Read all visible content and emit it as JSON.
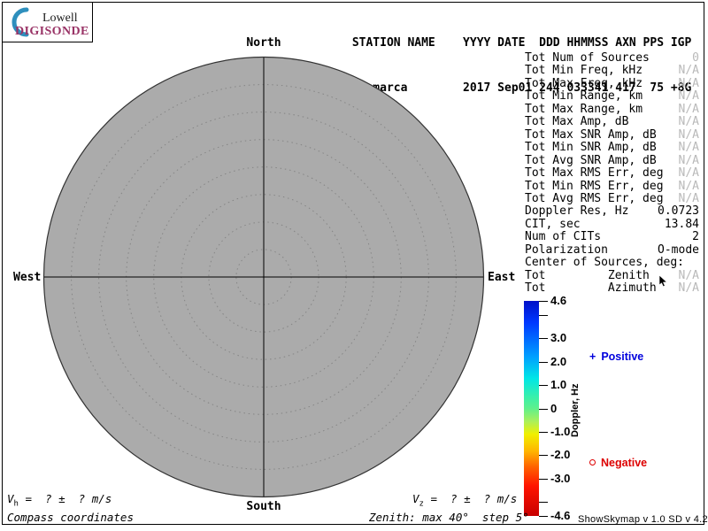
{
  "logo": {
    "top": "Lowell",
    "bottom": "DIGISONDE"
  },
  "header": {
    "line1": " STATION NAME    YYYY DATE  DDD HHMMSS AXN PPS IGP",
    "line2": "Jicamarca        2017 Sep01 244 033341 417  75 +8G",
    "fields": {
      "station_name": "Jicamarca",
      "yyyy": "2017",
      "date": "Sep01",
      "ddd": "244",
      "hhmmss": "033341",
      "axn": "417",
      "pps": "75",
      "igp": "+8G"
    }
  },
  "compass": {
    "north": "North",
    "south": "South",
    "west": "West",
    "east": "East"
  },
  "stats": {
    "rows": [
      {
        "label": "Tot Num of Sources",
        "value": "0",
        "dim": true
      },
      {
        "label": "Tot Min Freq, kHz",
        "value": "N/A",
        "dim": true
      },
      {
        "label": "Tot Max Freq, kHz",
        "value": "N/A",
        "dim": true
      },
      {
        "label": "Tot Min Range, km",
        "value": "N/A",
        "dim": true
      },
      {
        "label": "Tot Max Range, km",
        "value": "N/A",
        "dim": true
      },
      {
        "label": "Tot Max Amp, dB",
        "value": "N/A",
        "dim": true
      },
      {
        "label": "Tot Max SNR Amp, dB",
        "value": "N/A",
        "dim": true
      },
      {
        "label": "Tot Min SNR Amp, dB",
        "value": "N/A",
        "dim": true
      },
      {
        "label": "Tot Avg SNR Amp, dB",
        "value": "N/A",
        "dim": true
      },
      {
        "label": "Tot Max RMS Err, deg",
        "value": "N/A",
        "dim": true
      },
      {
        "label": "Tot Min RMS Err, deg",
        "value": "N/A",
        "dim": true
      },
      {
        "label": "Tot Avg RMS Err, deg",
        "value": "N/A",
        "dim": true
      },
      {
        "label": "Doppler Res, Hz",
        "value": "0.0723",
        "dim": false
      },
      {
        "label": "CIT, sec",
        "value": "13.84",
        "dim": false
      },
      {
        "label": "Num of CITs",
        "value": "2",
        "dim": false
      },
      {
        "label": "Polarization",
        "value": "O-mode",
        "dim": false
      },
      {
        "label": "Center of Sources, deg:",
        "value": "",
        "dim": false
      },
      {
        "label": "Tot         Zenith",
        "value": "N/A",
        "dim": true
      },
      {
        "label": "Tot         Azimuth",
        "value": "N/A",
        "dim": true
      }
    ]
  },
  "colorbar": {
    "title": "Doppler, Hz",
    "max": 4.6,
    "min": -4.6,
    "ticks": [
      {
        "v": 4.6,
        "label": "4.6"
      },
      {
        "v": 4.0,
        "label": ""
      },
      {
        "v": 3.0,
        "label": "3.0"
      },
      {
        "v": 2.0,
        "label": "2.0"
      },
      {
        "v": 1.0,
        "label": "1.0"
      },
      {
        "v": 0,
        "label": "0"
      },
      {
        "v": -1.0,
        "label": "-1.0"
      },
      {
        "v": -2.0,
        "label": "-2.0"
      },
      {
        "v": -3.0,
        "label": "-3.0"
      },
      {
        "v": -4.0,
        "label": ""
      },
      {
        "v": -4.6,
        "label": "-4.6"
      }
    ]
  },
  "legend": {
    "positive": {
      "marker": "+",
      "label": "Positive",
      "color": "#0000dd"
    },
    "negative": {
      "marker": "o",
      "label": "Negative",
      "color": "#dd0000"
    }
  },
  "footer": {
    "vh": {
      "symbol": "V",
      "sub": "h",
      "rest": " =  ? ±  ? m/s"
    },
    "vz": {
      "symbol": "V",
      "sub": "z",
      "rest": " =  ? ±  ? m/s"
    },
    "coordinates_note": "Compass coordinates",
    "zenith_note": "Zenith: max 40°  step 5°",
    "version": "ShowSkymap v 1.0   SD v 4.2"
  },
  "plot": {
    "max_zenith_deg": 40,
    "step_deg": 5,
    "num_rings": 8
  },
  "colors": {
    "positive": "#0000dd",
    "negative": "#dd0000",
    "plot_fill": "#ababab",
    "logo_magenta": "#993366",
    "logo_blue": "#2e8fc0",
    "dim_value": "#b9b9b9"
  },
  "chart_data": {
    "type": "scatter",
    "title": "Digisonde skymap, compass coordinates",
    "points": [],
    "rings_deg": [
      5,
      10,
      15,
      20,
      25,
      30,
      35,
      40
    ],
    "colorbar": {
      "label": "Doppler, Hz",
      "range": [
        -4.6,
        4.6
      ],
      "tick_labels": [
        "4.6",
        "3.0",
        "2.0",
        "1.0",
        "0",
        "-1.0",
        "-2.0",
        "-3.0",
        "-4.6"
      ]
    }
  }
}
